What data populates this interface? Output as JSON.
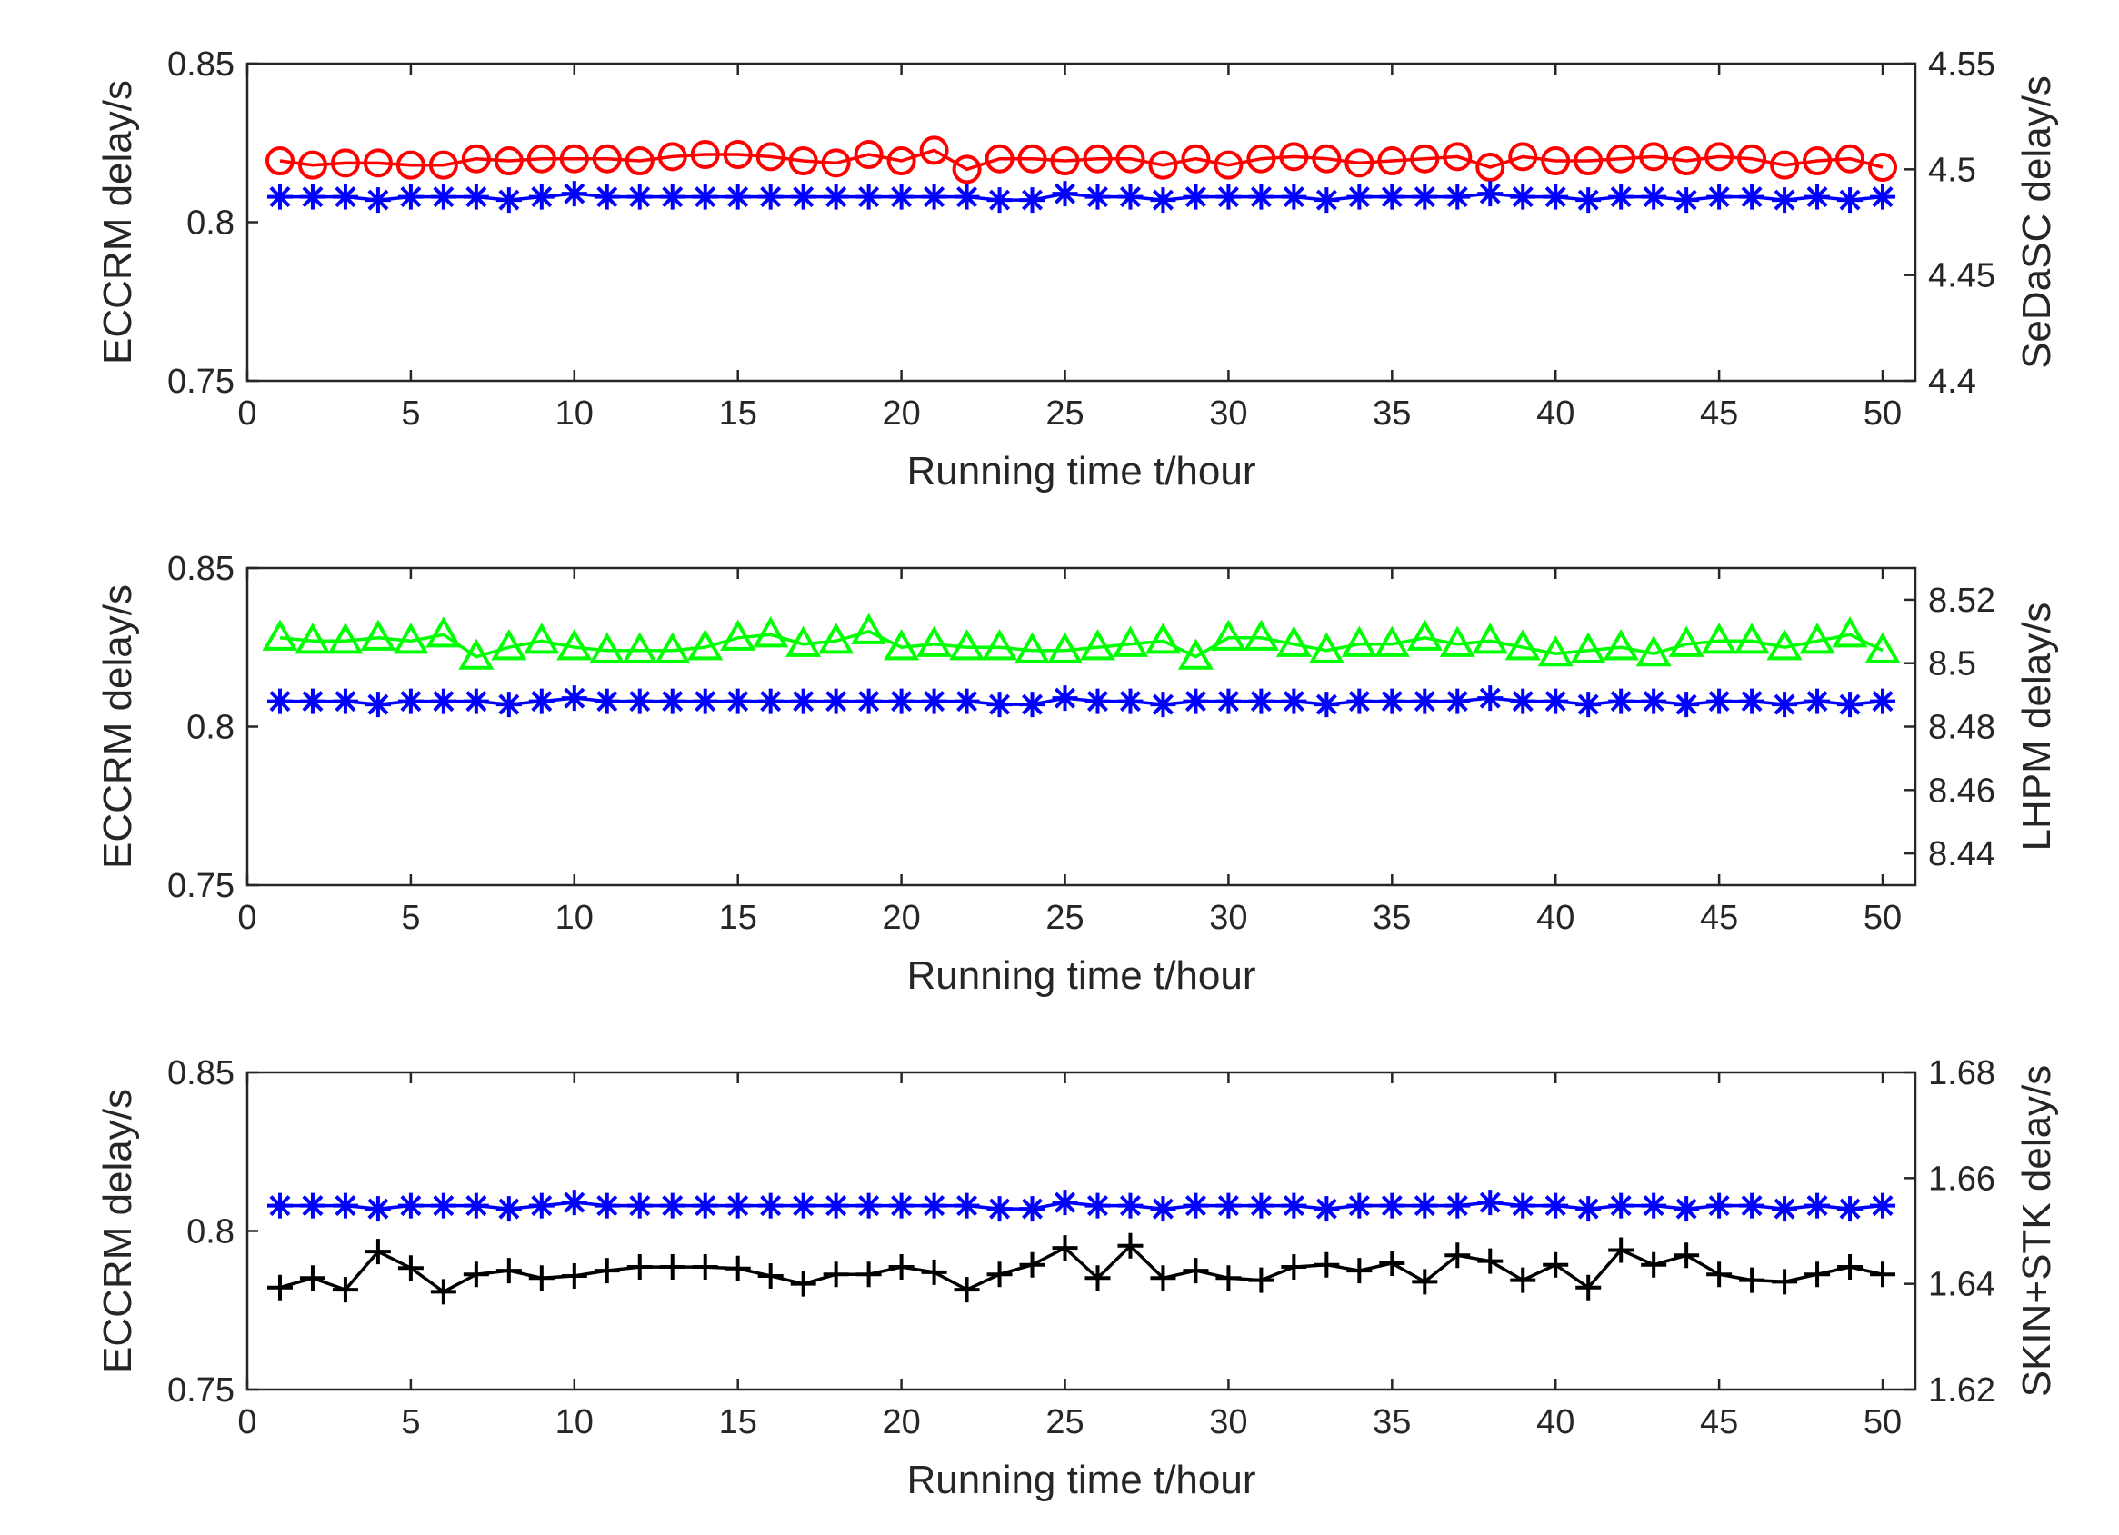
{
  "chart_data": [
    {
      "type": "line",
      "title": "",
      "xlabel": "Running time t/hour",
      "ylabel_left": "ECCRM delay/s",
      "ylabel_right": "SeDaSC delay/s",
      "xlim": [
        0,
        51
      ],
      "xticks": [
        0,
        5,
        10,
        15,
        20,
        25,
        30,
        35,
        40,
        45,
        50
      ],
      "ylim_left": [
        0.75,
        0.85
      ],
      "yticks_left": [
        "0.75",
        "0.8",
        "0.85"
      ],
      "ylim_right": [
        4.4,
        4.55
      ],
      "yticks_right": [
        "4.4",
        "4.45",
        "4.5",
        "4.55"
      ],
      "grid": false,
      "series": [
        {
          "name": "SeDaSC",
          "axis": "right",
          "color": "#ff0000",
          "marker": "circle",
          "x": [
            1,
            2,
            3,
            4,
            5,
            6,
            7,
            8,
            9,
            10,
            11,
            12,
            13,
            14,
            15,
            16,
            17,
            18,
            19,
            20,
            21,
            22,
            23,
            24,
            25,
            26,
            27,
            28,
            29,
            30,
            31,
            32,
            33,
            34,
            35,
            36,
            37,
            38,
            39,
            40,
            41,
            42,
            43,
            44,
            45,
            46,
            47,
            48,
            49,
            50
          ],
          "values": [
            4.504,
            4.502,
            4.503,
            4.503,
            4.502,
            4.502,
            4.505,
            4.504,
            4.505,
            4.505,
            4.505,
            4.504,
            4.506,
            4.507,
            4.507,
            4.506,
            4.504,
            4.503,
            4.507,
            4.504,
            4.509,
            4.5,
            4.505,
            4.505,
            4.504,
            4.505,
            4.505,
            4.502,
            4.505,
            4.502,
            4.505,
            4.506,
            4.505,
            4.503,
            4.504,
            4.505,
            4.506,
            4.501,
            4.506,
            4.504,
            4.504,
            4.505,
            4.506,
            4.504,
            4.506,
            4.505,
            4.502,
            4.504,
            4.505,
            4.501
          ]
        },
        {
          "name": "ECCRM",
          "axis": "left",
          "color": "#0000ff",
          "marker": "asterisk",
          "x": [
            1,
            2,
            3,
            4,
            5,
            6,
            7,
            8,
            9,
            10,
            11,
            12,
            13,
            14,
            15,
            16,
            17,
            18,
            19,
            20,
            21,
            22,
            23,
            24,
            25,
            26,
            27,
            28,
            29,
            30,
            31,
            32,
            33,
            34,
            35,
            36,
            37,
            38,
            39,
            40,
            41,
            42,
            43,
            44,
            45,
            46,
            47,
            48,
            49,
            50
          ],
          "values": [
            0.808,
            0.808,
            0.808,
            0.807,
            0.808,
            0.808,
            0.808,
            0.807,
            0.808,
            0.809,
            0.808,
            0.808,
            0.808,
            0.808,
            0.808,
            0.808,
            0.808,
            0.808,
            0.808,
            0.808,
            0.808,
            0.808,
            0.807,
            0.807,
            0.809,
            0.808,
            0.808,
            0.807,
            0.808,
            0.808,
            0.808,
            0.808,
            0.807,
            0.808,
            0.808,
            0.808,
            0.808,
            0.809,
            0.808,
            0.808,
            0.807,
            0.808,
            0.808,
            0.807,
            0.808,
            0.808,
            0.807,
            0.808,
            0.807,
            0.808
          ]
        }
      ]
    },
    {
      "type": "line",
      "title": "",
      "xlabel": "Running time t/hour",
      "ylabel_left": "ECCRM delay/s",
      "ylabel_right": "LHPM delay/s",
      "xlim": [
        0,
        51
      ],
      "xticks": [
        0,
        5,
        10,
        15,
        20,
        25,
        30,
        35,
        40,
        45,
        50
      ],
      "ylim_left": [
        0.75,
        0.85
      ],
      "yticks_left": [
        "0.75",
        "0.8",
        "0.85"
      ],
      "ylim_right": [
        8.43,
        8.53
      ],
      "yticks_right": [
        "8.44",
        "8.46",
        "8.48",
        "8.5",
        "8.52"
      ],
      "grid": false,
      "series": [
        {
          "name": "LHPM",
          "axis": "right",
          "color": "#00ff00",
          "marker": "triangle",
          "x": [
            1,
            2,
            3,
            4,
            5,
            6,
            7,
            8,
            9,
            10,
            11,
            12,
            13,
            14,
            15,
            16,
            17,
            18,
            19,
            20,
            21,
            22,
            23,
            24,
            25,
            26,
            27,
            28,
            29,
            30,
            31,
            32,
            33,
            34,
            35,
            36,
            37,
            38,
            39,
            40,
            41,
            42,
            43,
            44,
            45,
            46,
            47,
            48,
            49,
            50
          ],
          "values": [
            8.508,
            8.507,
            8.507,
            8.508,
            8.507,
            8.509,
            8.502,
            8.505,
            8.507,
            8.505,
            8.504,
            8.504,
            8.504,
            8.505,
            8.508,
            8.509,
            8.506,
            8.507,
            8.51,
            8.505,
            8.506,
            8.505,
            8.505,
            8.504,
            8.504,
            8.505,
            8.506,
            8.507,
            8.502,
            8.508,
            8.508,
            8.506,
            8.504,
            8.506,
            8.506,
            8.508,
            8.506,
            8.507,
            8.505,
            8.503,
            8.504,
            8.505,
            8.503,
            8.506,
            8.507,
            8.507,
            8.505,
            8.507,
            8.509,
            8.504
          ]
        },
        {
          "name": "ECCRM",
          "axis": "left",
          "color": "#0000ff",
          "marker": "asterisk",
          "x": [
            1,
            2,
            3,
            4,
            5,
            6,
            7,
            8,
            9,
            10,
            11,
            12,
            13,
            14,
            15,
            16,
            17,
            18,
            19,
            20,
            21,
            22,
            23,
            24,
            25,
            26,
            27,
            28,
            29,
            30,
            31,
            32,
            33,
            34,
            35,
            36,
            37,
            38,
            39,
            40,
            41,
            42,
            43,
            44,
            45,
            46,
            47,
            48,
            49,
            50
          ],
          "values": [
            0.808,
            0.808,
            0.808,
            0.807,
            0.808,
            0.808,
            0.808,
            0.807,
            0.808,
            0.809,
            0.808,
            0.808,
            0.808,
            0.808,
            0.808,
            0.808,
            0.808,
            0.808,
            0.808,
            0.808,
            0.808,
            0.808,
            0.807,
            0.807,
            0.809,
            0.808,
            0.808,
            0.807,
            0.808,
            0.808,
            0.808,
            0.808,
            0.807,
            0.808,
            0.808,
            0.808,
            0.808,
            0.809,
            0.808,
            0.808,
            0.807,
            0.808,
            0.808,
            0.807,
            0.808,
            0.808,
            0.807,
            0.808,
            0.807,
            0.808
          ]
        }
      ]
    },
    {
      "type": "line",
      "title": "",
      "xlabel": "Running time t/hour",
      "ylabel_left": "ECCRM delay/s",
      "ylabel_right": "SKIN+STK delay/s",
      "xlim": [
        0,
        51
      ],
      "xticks": [
        0,
        5,
        10,
        15,
        20,
        25,
        30,
        35,
        40,
        45,
        50
      ],
      "ylim_left": [
        0.75,
        0.85
      ],
      "yticks_left": [
        "0.75",
        "0.8",
        "0.85"
      ],
      "ylim_right": [
        1.62,
        1.68
      ],
      "yticks_right": [
        "1.62",
        "1.64",
        "1.66",
        "1.68"
      ],
      "grid": false,
      "series": [
        {
          "name": "SKIN+STK",
          "axis": "right",
          "color": "#000000",
          "marker": "plus",
          "x": [
            1,
            2,
            3,
            4,
            5,
            6,
            7,
            8,
            9,
            10,
            11,
            12,
            13,
            14,
            15,
            16,
            17,
            18,
            19,
            20,
            21,
            22,
            23,
            24,
            25,
            26,
            27,
            28,
            29,
            30,
            31,
            32,
            33,
            34,
            35,
            36,
            37,
            38,
            39,
            40,
            41,
            42,
            43,
            44,
            45,
            46,
            47,
            48,
            49,
            50
          ],
          "values": [
            1.6393,
            1.6411,
            1.6389,
            1.6461,
            1.643,
            1.6385,
            1.6418,
            1.6425,
            1.6411,
            1.6415,
            1.6425,
            1.6432,
            1.6432,
            1.6432,
            1.6429,
            1.6415,
            1.64,
            1.6418,
            1.6418,
            1.6432,
            1.6422,
            1.6389,
            1.6418,
            1.6436,
            1.6468,
            1.6411,
            1.6472,
            1.6411,
            1.6425,
            1.6411,
            1.6407,
            1.6432,
            1.6436,
            1.6425,
            1.6439,
            1.6404,
            1.6454,
            1.6443,
            1.6407,
            1.6436,
            1.6393,
            1.6464,
            1.6436,
            1.6454,
            1.6418,
            1.6407,
            1.6404,
            1.6418,
            1.6432,
            1.6418
          ]
        },
        {
          "name": "ECCRM",
          "axis": "left",
          "color": "#0000ff",
          "marker": "asterisk",
          "x": [
            1,
            2,
            3,
            4,
            5,
            6,
            7,
            8,
            9,
            10,
            11,
            12,
            13,
            14,
            15,
            16,
            17,
            18,
            19,
            20,
            21,
            22,
            23,
            24,
            25,
            26,
            27,
            28,
            29,
            30,
            31,
            32,
            33,
            34,
            35,
            36,
            37,
            38,
            39,
            40,
            41,
            42,
            43,
            44,
            45,
            46,
            47,
            48,
            49,
            50
          ],
          "values": [
            0.808,
            0.808,
            0.808,
            0.807,
            0.808,
            0.808,
            0.808,
            0.807,
            0.808,
            0.809,
            0.808,
            0.808,
            0.808,
            0.808,
            0.808,
            0.808,
            0.808,
            0.808,
            0.808,
            0.808,
            0.808,
            0.808,
            0.807,
            0.807,
            0.809,
            0.808,
            0.808,
            0.807,
            0.808,
            0.808,
            0.808,
            0.808,
            0.807,
            0.808,
            0.808,
            0.808,
            0.808,
            0.809,
            0.808,
            0.808,
            0.807,
            0.808,
            0.808,
            0.807,
            0.808,
            0.808,
            0.807,
            0.808,
            0.807,
            0.808
          ]
        }
      ]
    }
  ]
}
